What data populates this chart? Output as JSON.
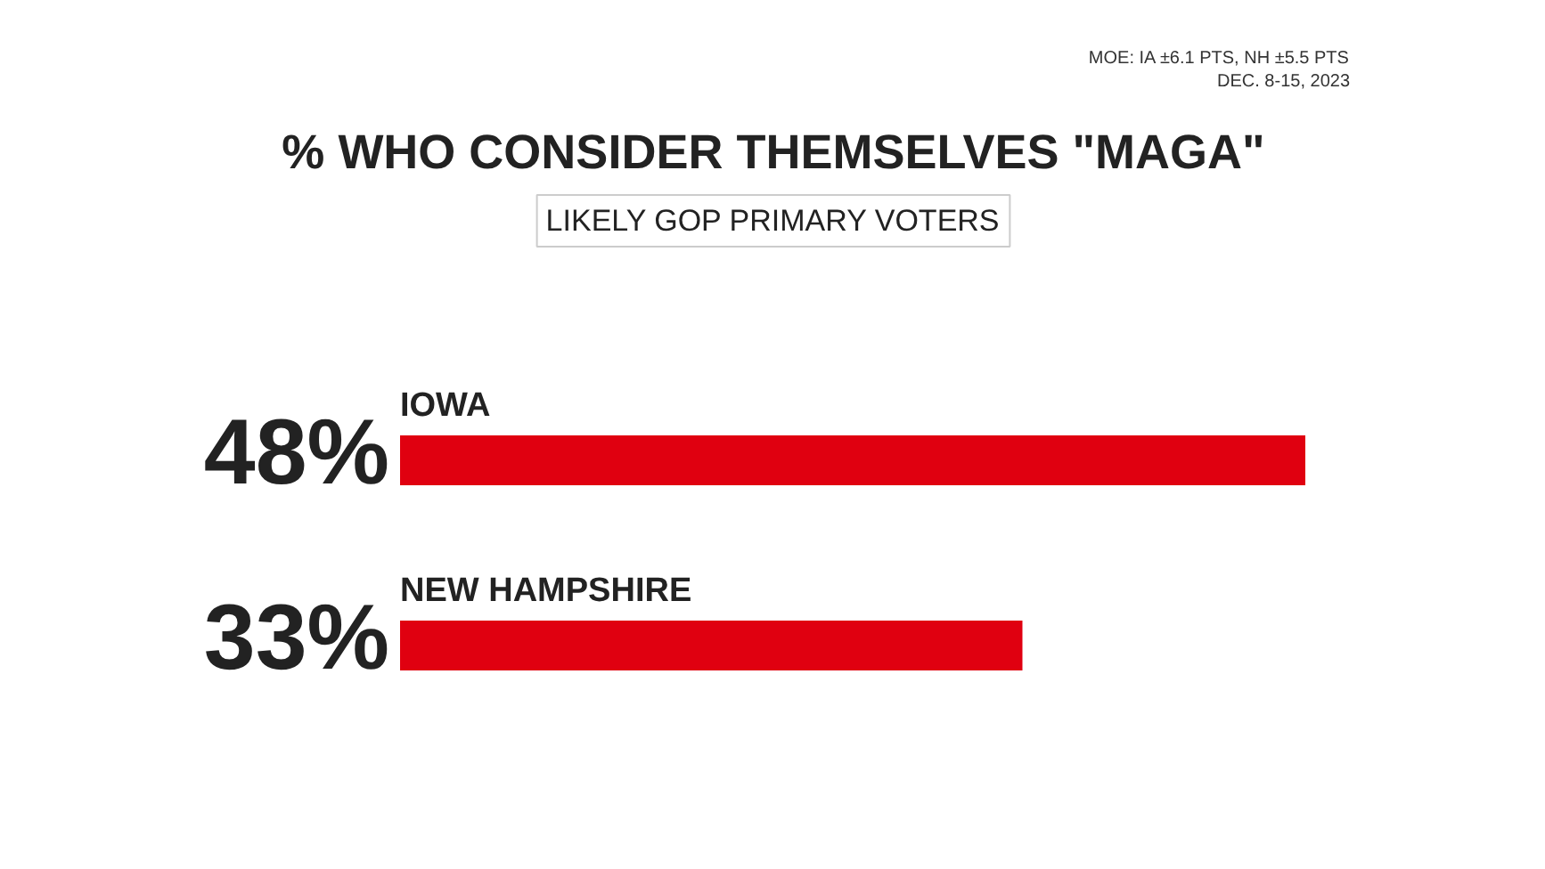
{
  "chart_data": {
    "type": "bar",
    "orientation": "horizontal",
    "title": "% WHO CONSIDER THEMSELVES \"MAGA\"",
    "subtitle": "LIKELY GOP PRIMARY VOTERS",
    "categories": [
      "IOWA",
      "NEW HAMPSHIRE"
    ],
    "values": [
      48,
      33
    ],
    "value_labels": [
      "48%",
      "33%"
    ],
    "color": "#e00010",
    "xlim": [
      0,
      48
    ],
    "annotations": [
      "MOE: IA ±6.1 PTS, NH ±5.5 PTS",
      "DEC. 8-15, 2023"
    ]
  }
}
